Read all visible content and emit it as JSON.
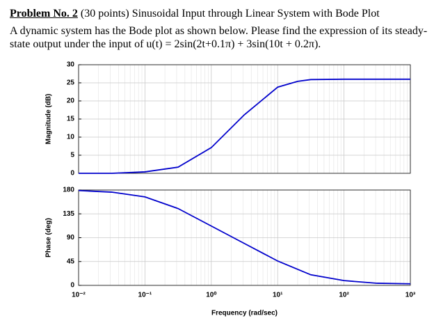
{
  "problem": {
    "title": "Problem No. 2",
    "subtitle": "(30 points) Sinusoidal Input through Linear System with Bode Plot",
    "line1": "A dynamic system has the Bode plot as shown below. Please find the expression of its steady-",
    "line2": "state output under the input of u(t) = 2sin(2t+0.1π) + 3sin(10t + 0.2π)."
  },
  "chart_data": [
    {
      "type": "line",
      "ylabel": "Magnitude (dB)",
      "log_x": true,
      "grid": true,
      "color": "#0000cc",
      "x": [
        0.01,
        0.0316,
        0.1,
        0.316,
        1,
        3.16,
        10,
        20,
        31.6,
        100,
        316,
        1000
      ],
      "values": [
        0,
        0,
        0.4,
        1.7,
        7.1,
        16.2,
        23.8,
        25.4,
        25.9,
        26,
        26,
        26
      ],
      "xlim": [
        0.01,
        1000
      ],
      "xticks": [
        0.01,
        0.1,
        1,
        10,
        100,
        1000
      ],
      "ylim": [
        0,
        30
      ],
      "yticks": [
        0,
        5,
        10,
        15,
        20,
        25,
        30
      ]
    },
    {
      "type": "line",
      "ylabel": "Phase (deg)",
      "xlabel": "Frequency (rad/sec)",
      "log_x": true,
      "grid": true,
      "color": "#0000cc",
      "x": [
        0.01,
        0.0316,
        0.1,
        0.316,
        1,
        3.16,
        10,
        31.6,
        100,
        316,
        1000
      ],
      "values": [
        179,
        176,
        167,
        145,
        112,
        79,
        46,
        20,
        9,
        4,
        3
      ],
      "xlim": [
        0.01,
        1000
      ],
      "xticks": [
        {
          "value": 0.01,
          "label": "10⁻²"
        },
        {
          "value": 0.1,
          "label": "10⁻¹"
        },
        {
          "value": 1,
          "label": "10⁰"
        },
        {
          "value": 10,
          "label": "10¹"
        },
        {
          "value": 100,
          "label": "10²"
        },
        {
          "value": 1000,
          "label": "10³"
        }
      ],
      "ylim": [
        0,
        180
      ],
      "yticks": [
        0,
        45,
        90,
        135,
        180
      ]
    }
  ]
}
